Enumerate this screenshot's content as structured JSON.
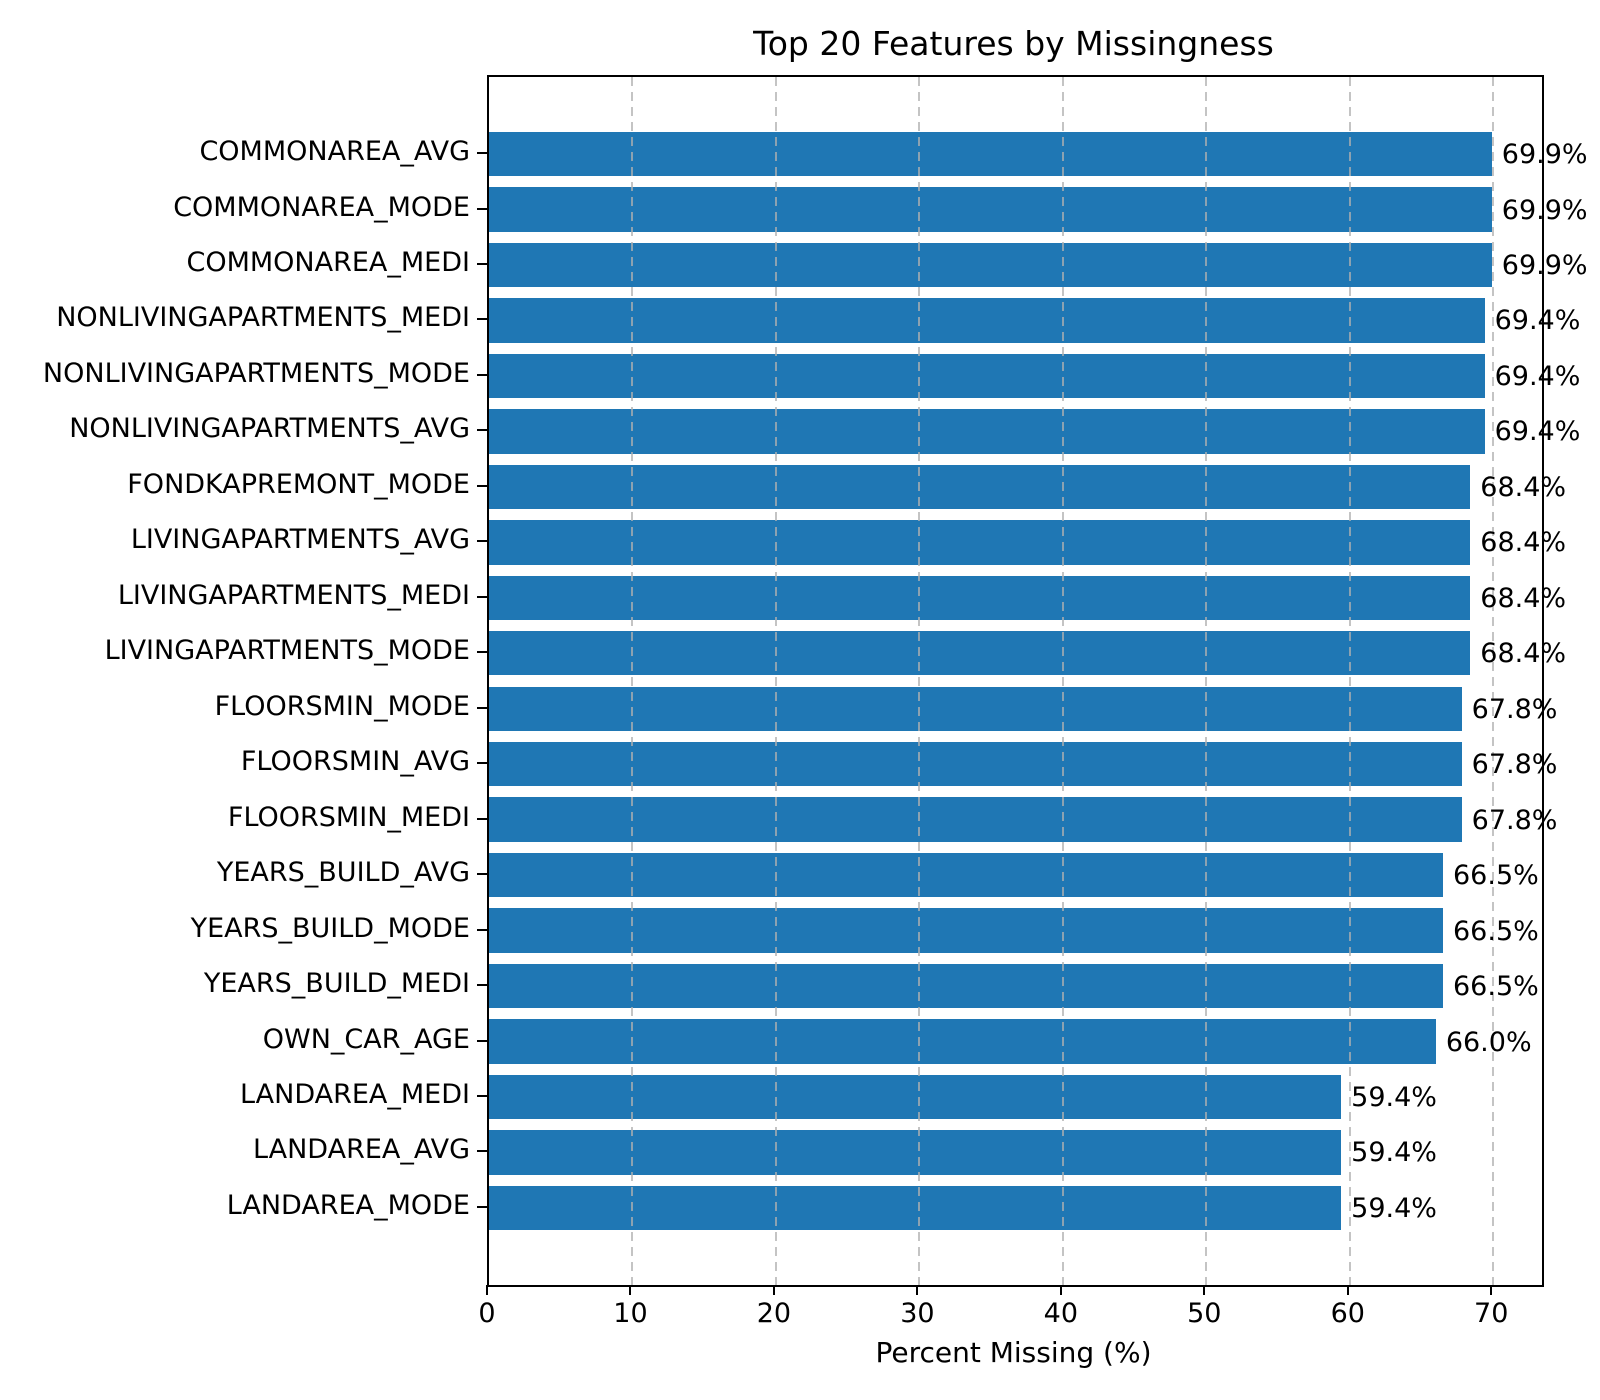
{
  "chart_data": {
    "type": "bar",
    "orientation": "horizontal",
    "title": "Top 20 Features by Missingness",
    "xlabel": "Percent Missing (%)",
    "ylabel": "",
    "categories": [
      "COMMONAREA_AVG",
      "COMMONAREA_MODE",
      "COMMONAREA_MEDI",
      "NONLIVINGAPARTMENTS_MEDI",
      "NONLIVINGAPARTMENTS_MODE",
      "NONLIVINGAPARTMENTS_AVG",
      "FONDKAPREMONT_MODE",
      "LIVINGAPARTMENTS_AVG",
      "LIVINGAPARTMENTS_MEDI",
      "LIVINGAPARTMENTS_MODE",
      "FLOORSMIN_MODE",
      "FLOORSMIN_AVG",
      "FLOORSMIN_MEDI",
      "YEARS_BUILD_AVG",
      "YEARS_BUILD_MODE",
      "YEARS_BUILD_MEDI",
      "OWN_CAR_AGE",
      "LANDAREA_MEDI",
      "LANDAREA_AVG",
      "LANDAREA_MODE"
    ],
    "values": [
      69.9,
      69.9,
      69.9,
      69.4,
      69.4,
      69.4,
      68.4,
      68.4,
      68.4,
      68.4,
      67.8,
      67.8,
      67.8,
      66.5,
      66.5,
      66.5,
      66.0,
      59.4,
      59.4,
      59.4
    ],
    "value_labels": [
      "69.9%",
      "69.9%",
      "69.9%",
      "69.4%",
      "69.4%",
      "69.4%",
      "68.4%",
      "68.4%",
      "68.4%",
      "68.4%",
      "67.8%",
      "67.8%",
      "67.8%",
      "66.5%",
      "66.5%",
      "66.5%",
      "66.0%",
      "59.4%",
      "59.4%",
      "59.4%"
    ],
    "xlim": [
      0,
      73.4
    ],
    "xticks": [
      0,
      10,
      20,
      30,
      40,
      50,
      60,
      70
    ],
    "xtick_labels": [
      "0",
      "10",
      "20",
      "30",
      "40",
      "50",
      "60",
      "70"
    ],
    "grid": "x-axis, dashed, drawn above bars",
    "legend": "none",
    "bar_color": "#1f77b4",
    "grid_color": "#b0b0b0"
  }
}
